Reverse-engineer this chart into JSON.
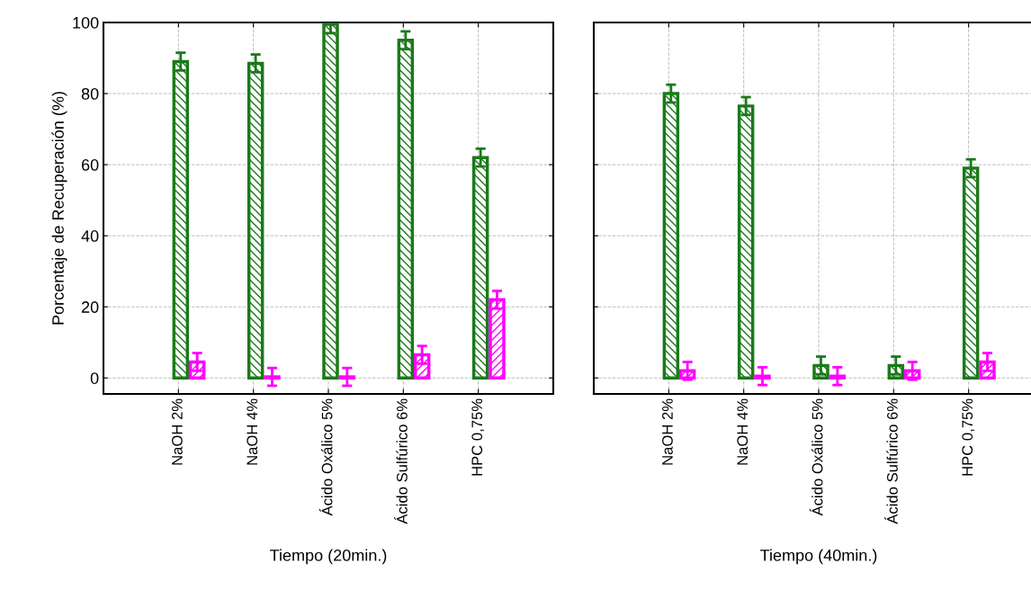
{
  "chart_data": [
    {
      "type": "bar",
      "xlabel": "Tiempo (20min.)",
      "ylabel": "Porcentaje de Recuperación (%)",
      "categories": [
        "NaOH 2%",
        "NaOH 4%",
        "Ácido Oxálico 5%",
        "Ácido Sulfúrico 6%",
        "HPC 0,75%"
      ],
      "ylim": [
        -4.5,
        100
      ],
      "yticks": [
        0,
        20,
        40,
        60,
        80,
        100
      ],
      "grid": true,
      "series": [
        {
          "color": "#1a7a1a",
          "values": [
            89,
            88.5,
            99.5,
            95,
            62
          ],
          "errors": [
            2.5,
            2.5,
            2.5,
            2.5,
            2.5
          ]
        },
        {
          "color": "#ff00ff",
          "values": [
            4.5,
            0.3,
            0.3,
            6.5,
            22
          ],
          "errors": [
            2.5,
            2.5,
            2.5,
            2.5,
            2.5
          ]
        }
      ]
    },
    {
      "type": "bar",
      "xlabel": "Tiempo (40min.)",
      "categories": [
        "NaOH 2%",
        "NaOH 4%",
        "Ácido Oxálico 5%",
        "Ácido Sulfúrico 6%",
        "HPC 0,75%"
      ],
      "ylim": [
        -4.5,
        100
      ],
      "yticks": [
        0,
        20,
        40,
        60,
        80,
        100
      ],
      "grid": true,
      "tick_labels": "x",
      "series": [
        {
          "color": "#1a7a1a",
          "values": [
            80,
            76.5,
            3.5,
            3.5,
            59
          ],
          "errors": [
            2.5,
            2.5,
            2.5,
            2.5,
            2.5
          ]
        },
        {
          "color": "#ff00ff",
          "values": [
            2,
            0.5,
            0.5,
            2,
            4.5
          ],
          "errors": [
            2.5,
            2.5,
            2.5,
            2.5,
            2.5
          ]
        }
      ]
    }
  ]
}
